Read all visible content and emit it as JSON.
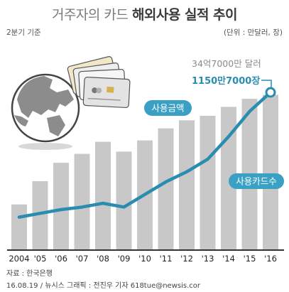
{
  "title": {
    "part1": "거주자의 카드",
    "part2": "해외사용 실적 추이"
  },
  "base_label": "2분기 기준",
  "unit_label": "(단위 : 만달러, 장)",
  "footer": {
    "source": "자료 : 한국은행",
    "credit": "16.08.19 / 뉴시스 그래픽 : 전진우 기자 618tue@newsis.cor"
  },
  "colors": {
    "bar": "#c8c8c8",
    "line": "#2a8db0",
    "label_bg": "#3aa0c4",
    "last_amount_text": "#8a8a8a",
    "last_count_text": "#2a8db0"
  },
  "icons": [
    "globe-icon",
    "credit-cards-icon"
  ],
  "chart_data": {
    "type": "bar",
    "categories": [
      "2004",
      "'05",
      "'06",
      "'07",
      "'08",
      "'09",
      "'10",
      "'11",
      "'12",
      "'13",
      "'14",
      "'15",
      "'16"
    ],
    "series": [
      {
        "name": "사용금액",
        "type": "bar",
        "values": [
          10.2,
          15.4,
          19.5,
          21.5,
          24.2,
          22.0,
          24.5,
          27.2,
          29.0,
          30.0,
          32.0,
          33.8,
          34.7
        ],
        "last_label": "34억7000만 달러"
      },
      {
        "name": "사용카드수",
        "type": "line",
        "values": [
          160,
          190,
          220,
          240,
          270,
          240,
          340,
          440,
          520,
          620,
          800,
          1000,
          1151
        ],
        "last_label": "1150만7000장"
      }
    ]
  }
}
